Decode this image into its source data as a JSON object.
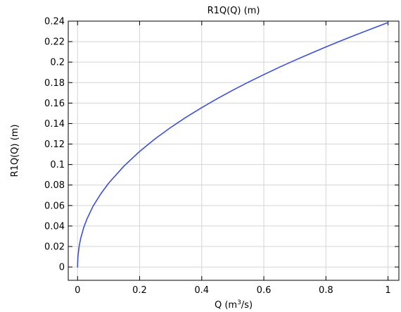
{
  "chart_data": {
    "type": "line",
    "title": "R1Q(Q) (m)",
    "xlabel": {
      "prefix": "Q (m",
      "sup": "3",
      "suffix": "/s)"
    },
    "ylabel": "R1Q(Q) (m)",
    "xlim": [
      -0.03,
      1.035
    ],
    "ylim": [
      -0.013,
      0.24
    ],
    "grid": true,
    "x_ticks": [
      0,
      0.2,
      0.4,
      0.6,
      0.8,
      1
    ],
    "x_tick_labels": [
      "0",
      "0.2",
      "0.4",
      "0.6",
      "0.8",
      "1"
    ],
    "y_ticks": [
      0,
      0.02,
      0.04,
      0.06,
      0.08,
      0.1,
      0.12,
      0.14,
      0.16,
      0.18,
      0.2,
      0.22,
      0.24
    ],
    "y_tick_labels": [
      "0",
      "0.02",
      "0.04",
      "0.06",
      "0.08",
      "0.1",
      "0.12",
      "0.14",
      "0.16",
      "0.18",
      "0.2",
      "0.22",
      "0.24"
    ],
    "series": [
      {
        "color": "#3b4fd8",
        "x": [
          0,
          0.001,
          0.005,
          0.01,
          0.02,
          0.03,
          0.05,
          0.075,
          0.1,
          0.15,
          0.2,
          0.25,
          0.3,
          0.35,
          0.4,
          0.45,
          0.5,
          0.55,
          0.6,
          0.65,
          0.7,
          0.75,
          0.8,
          0.85,
          0.9,
          0.95,
          1
        ],
        "y": [
          0,
          0.0095,
          0.02,
          0.0278,
          0.0386,
          0.0467,
          0.0594,
          0.0715,
          0.0818,
          0.0987,
          0.1128,
          0.1252,
          0.1362,
          0.1463,
          0.1556,
          0.1643,
          0.1726,
          0.1804,
          0.1878,
          0.195,
          0.2018,
          0.2084,
          0.2148,
          0.221,
          0.227,
          0.2329,
          0.2386
        ]
      }
    ]
  }
}
